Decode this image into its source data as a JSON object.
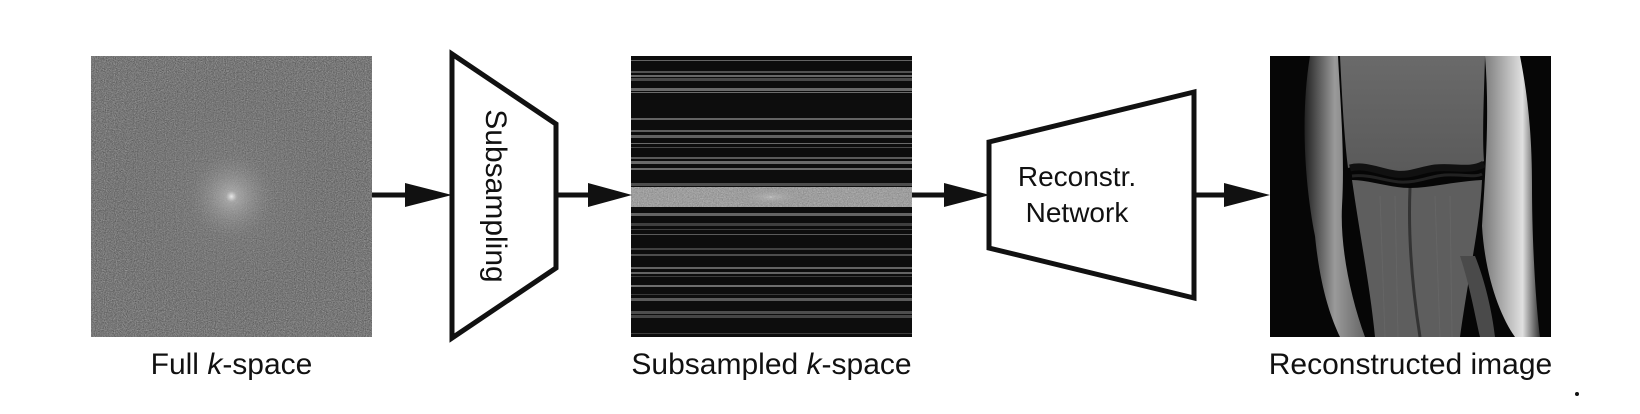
{
  "diagram": {
    "stages": {
      "full_kspace": {
        "caption_prefix": "Full ",
        "caption_italic": "k",
        "caption_suffix": "-space"
      },
      "subsampling": {
        "label": "Subsampling"
      },
      "subsampled_kspace": {
        "caption_prefix": "Subsampled ",
        "caption_italic": "k",
        "caption_suffix": "-space"
      },
      "network": {
        "line1": "Reconstr.",
        "line2": "Network"
      },
      "reconstructed": {
        "caption": "Reconstructed image"
      }
    }
  }
}
